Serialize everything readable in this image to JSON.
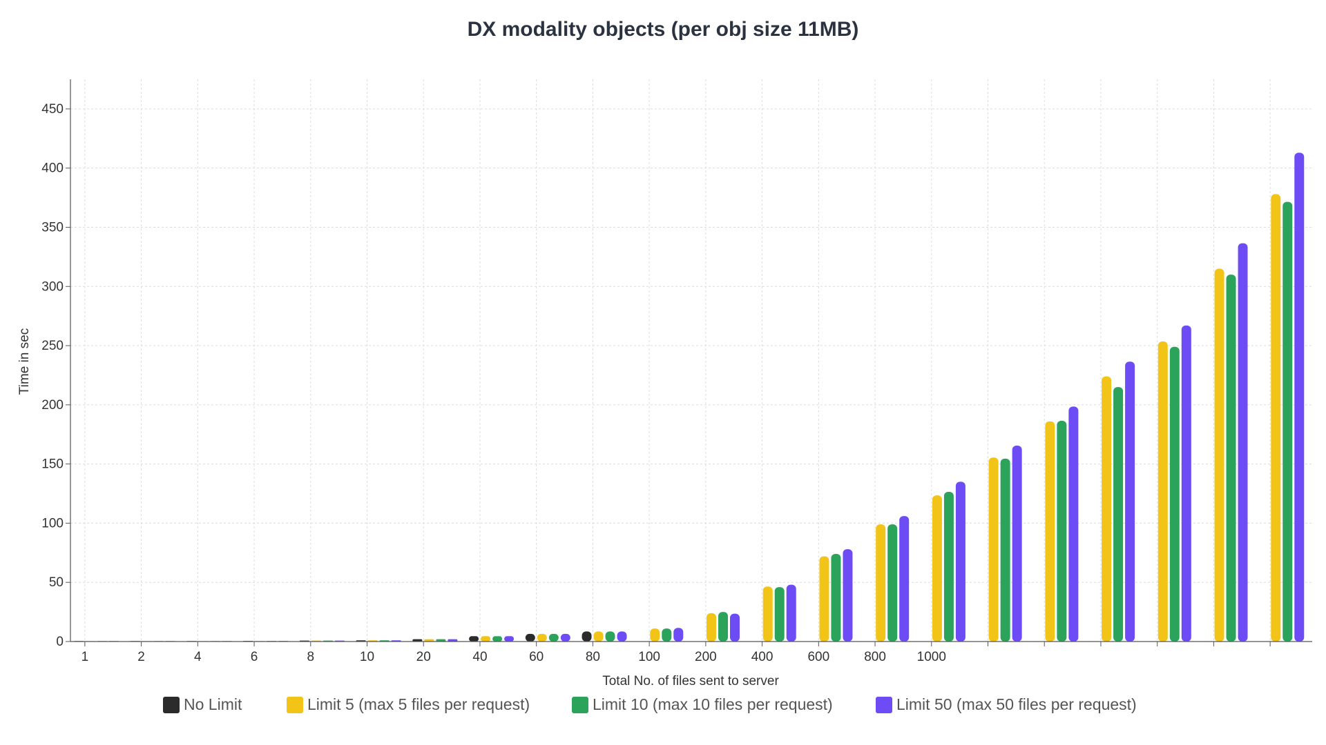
{
  "chart_data": {
    "type": "bar",
    "title": "DX modality objects (per obj size 11MB)",
    "xlabel": "Total No. of files sent to server",
    "ylabel": "Time in sec",
    "ylim": [
      0,
      475
    ],
    "yticks": [
      0,
      50,
      100,
      150,
      200,
      250,
      300,
      350,
      400,
      450
    ],
    "grid": true,
    "legend_position": "bottom",
    "categories": [
      "1",
      "2",
      "4",
      "6",
      "8",
      "10",
      "20",
      "40",
      "60",
      "80",
      "100",
      "200",
      "400",
      "600",
      "800",
      "1000",
      "",
      "",
      "",
      "",
      "",
      ""
    ],
    "series": [
      {
        "name": "No Limit",
        "color": "#2b2b2b",
        "values": [
          0.1,
          0.2,
          0.3,
          0.5,
          0.8,
          1,
          2,
          4.5,
          6.5,
          8.5,
          null,
          null,
          null,
          null,
          null,
          null,
          null,
          null,
          null,
          null,
          null,
          null
        ]
      },
      {
        "name": "Limit 5 (max 5 files per request)",
        "color": "#f2c417",
        "values": [
          0.1,
          0.2,
          0.3,
          0.5,
          0.8,
          1,
          2,
          4.5,
          6.5,
          8.5,
          11,
          24,
          46.5,
          72,
          99,
          123.5,
          155.5,
          186,
          224,
          253.5,
          315,
          378
        ]
      },
      {
        "name": "Limit 10 (max 10 files per request)",
        "color": "#2ca35b",
        "values": [
          0.1,
          0.2,
          0.3,
          0.5,
          0.8,
          1,
          2,
          4.5,
          6.5,
          8.5,
          11,
          25,
          46,
          74,
          99,
          126.5,
          154.5,
          186.5,
          215,
          249,
          310,
          371.5
        ]
      },
      {
        "name": "Limit 50 (max 50 files per request)",
        "color": "#6e4cf5",
        "values": [
          0.1,
          0.2,
          0.3,
          0.5,
          0.8,
          1,
          2,
          4.5,
          6.5,
          8.5,
          11.5,
          23.5,
          48,
          78,
          106,
          135,
          165.5,
          198.5,
          236.5,
          267,
          336.5,
          413
        ]
      }
    ]
  }
}
